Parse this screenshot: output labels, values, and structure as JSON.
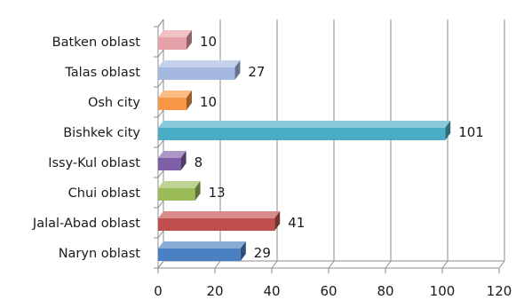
{
  "chart_data": {
    "type": "bar",
    "orientation": "horizontal",
    "categories": [
      "Naryn oblast",
      "Jalal-Abad oblast",
      "Chui oblast",
      "Issy-Kul oblast",
      "Bishkek city",
      "Osh city",
      "Talas oblast",
      "Batken oblast"
    ],
    "values": [
      29,
      41,
      13,
      8,
      101,
      10,
      27,
      10
    ],
    "colors": [
      "#4a7fc1",
      "#c0504d",
      "#9bbb59",
      "#7f5fa8",
      "#4bacc6",
      "#f79646",
      "#a5b8e0",
      "#e6a0a8"
    ],
    "xlim": [
      0,
      120
    ],
    "xticks": [
      0,
      20,
      40,
      60,
      80,
      100,
      120
    ],
    "grid": true,
    "three_d": true,
    "title": "",
    "xlabel": "",
    "ylabel": ""
  }
}
